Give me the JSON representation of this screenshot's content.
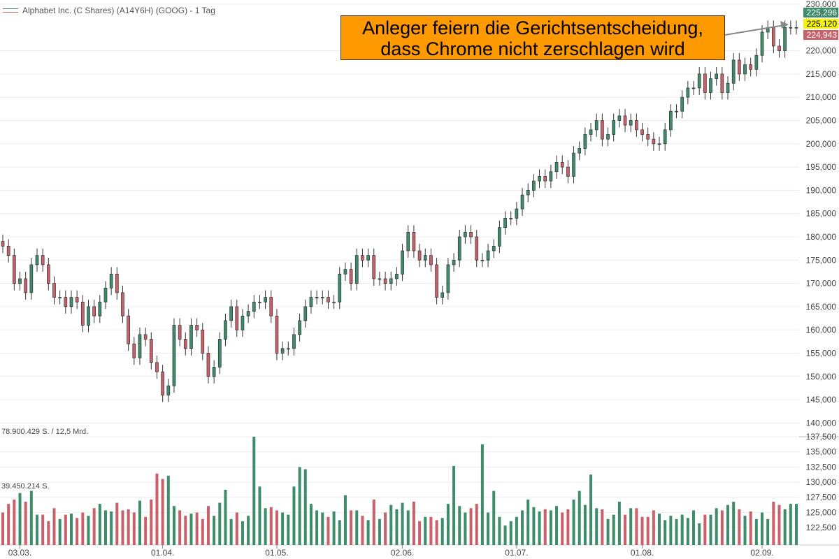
{
  "legend": {
    "title": "Alphabet Inc. (C Shares) (A14Y6H) (GOOG) - 1 Tag"
  },
  "annotation": {
    "line1": "Anleger feiern die Gerichtsentscheidung,",
    "line2": "dass Chrome nicht zerschlagen wird"
  },
  "volume_panel": {
    "max_label": "78.900.429 S. / 12,5 Mrd.",
    "mid_label": "39.450.214 S."
  },
  "price_labels": [
    {
      "text": "225,296",
      "bg": "#3d8c6a",
      "color": "#ffffff"
    },
    {
      "text": "225,120",
      "bg": "#f5f500",
      "color": "#000000"
    },
    {
      "text": "224,943",
      "bg": "#c8616a",
      "color": "#ffffff"
    }
  ],
  "colors": {
    "up": "#3d8c6a",
    "down": "#c8616a",
    "grid": "#ececec"
  },
  "chart_data": {
    "type": "candlestick",
    "title": "Alphabet Inc. (C Shares) (A14Y6H) (GOOG) - 1 Tag",
    "x_tick_labels": [
      "03.03.",
      "01.04.",
      "01.05.",
      "02.06.",
      "01.07.",
      "01.08.",
      "02.09."
    ],
    "x_tick_bar_index": [
      3,
      28,
      48,
      70,
      90,
      112,
      133
    ],
    "price_axis": {
      "range": [
        137500,
        230000
      ],
      "ticks": [
        "140,000",
        "145,000",
        "150,000",
        "155,000",
        "160,000",
        "165,000",
        "170,000",
        "175,000",
        "180,000",
        "185,000",
        "190,000",
        "195,000",
        "200,000",
        "205,000",
        "210,000",
        "215,000",
        "220,000",
        "230,000"
      ]
    },
    "volume_axis": {
      "ticks": [
        "122,500",
        "125,000",
        "127,500",
        "130,000",
        "132,500",
        "135,000",
        "137,500"
      ]
    },
    "candles_close": [
      178,
      176,
      170,
      171,
      168,
      174,
      176,
      174,
      170,
      167,
      167,
      165,
      167,
      166,
      161,
      165,
      163,
      166,
      169,
      172,
      168,
      163,
      157,
      154,
      159,
      158,
      153,
      151,
      146,
      148,
      161,
      158,
      156,
      161,
      160,
      155,
      150,
      152,
      158,
      162,
      165,
      160,
      163,
      164,
      166,
      166,
      167,
      163,
      155,
      156,
      156,
      159,
      162,
      165,
      167,
      167,
      167,
      166,
      166,
      172,
      173,
      170,
      176,
      175,
      176,
      171,
      171,
      170,
      171,
      172,
      177,
      181,
      177,
      175,
      176,
      174,
      167,
      168,
      174,
      175,
      180,
      181,
      180,
      175,
      175,
      177,
      178,
      182,
      184,
      184,
      186,
      189,
      190,
      192,
      193,
      192,
      194,
      196,
      195,
      193,
      198,
      199,
      202,
      203,
      205,
      201,
      202,
      205,
      206,
      204,
      205,
      203,
      202,
      201,
      200,
      200,
      203,
      207,
      207,
      210,
      212,
      212,
      215,
      211,
      214,
      215,
      211,
      213,
      218,
      215,
      217,
      216,
      219,
      224,
      225,
      221,
      220,
      225,
      225,
      225
    ],
    "volume_levels": [
      0.3,
      0.38,
      0.42,
      0.48,
      0.4,
      0.5,
      0.28,
      0.28,
      0.22,
      0.34,
      0.24,
      0.28,
      0.29,
      0.25,
      0.3,
      0.27,
      0.34,
      0.38,
      0.32,
      0.31,
      0.39,
      0.32,
      0.33,
      0.3,
      0.41,
      0.26,
      0.42,
      0.66,
      0.61,
      0.64,
      0.36,
      0.32,
      0.27,
      0.29,
      0.3,
      0.24,
      0.36,
      0.27,
      0.39,
      0.51,
      0.24,
      0.3,
      0.22,
      0.27,
      1.0,
      0.54,
      0.34,
      0.35,
      0.32,
      0.3,
      0.28,
      0.54,
      0.72,
      0.7,
      0.38,
      0.32,
      0.3,
      0.26,
      0.31,
      0.23,
      0.46,
      0.32,
      0.32,
      0.27,
      0.23,
      0.42,
      0.24,
      0.3,
      0.37,
      0.33,
      0.39,
      0.32,
      0.4,
      0.22,
      0.26,
      0.26,
      0.23,
      0.25,
      0.38,
      0.73,
      0.36,
      0.3,
      0.34,
      0.38,
      0.93,
      0.3,
      0.5,
      0.26,
      0.18,
      0.22,
      0.26,
      0.32,
      0.42,
      0.35,
      0.31,
      0.33,
      0.32,
      0.36,
      0.3,
      0.33,
      0.42,
      0.5,
      0.37,
      0.65,
      0.34,
      0.33,
      0.24,
      0.28,
      0.4,
      0.28,
      0.34,
      0.34,
      0.26,
      0.26,
      0.32,
      0.29,
      0.23,
      0.27,
      0.24,
      0.28,
      0.25,
      0.32,
      0.2,
      0.28,
      0.28,
      0.34,
      0.32,
      0.37,
      0.4,
      0.33,
      0.27,
      0.31,
      0.24,
      0.3,
      0.24,
      0.4,
      0.37,
      0.33,
      0.38,
      0.38
    ]
  }
}
